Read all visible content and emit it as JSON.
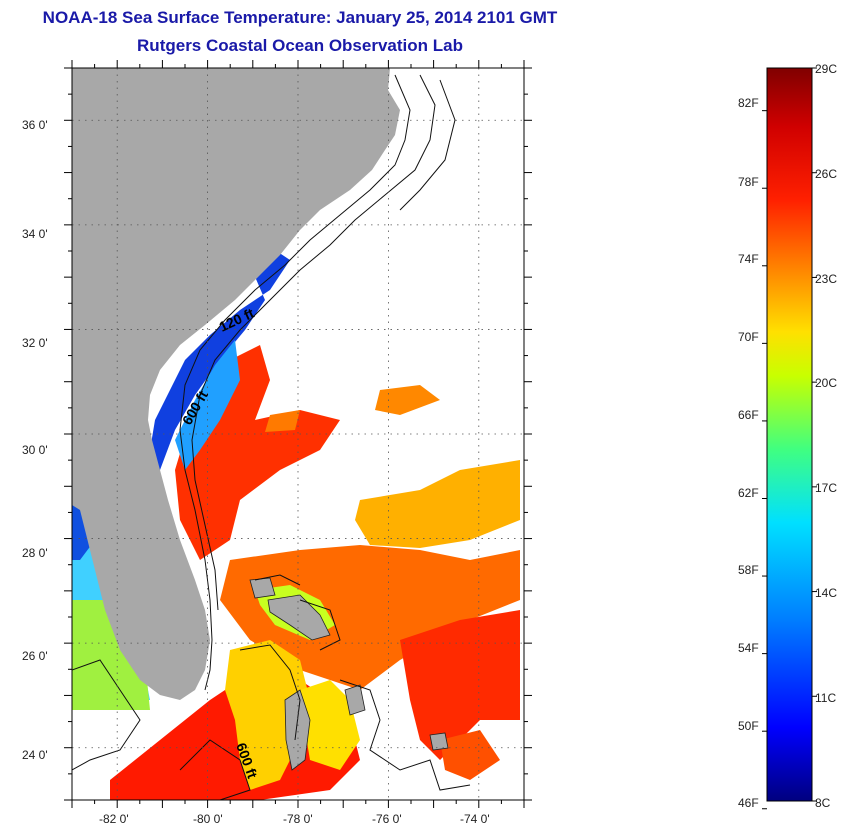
{
  "header": {
    "title": "NOAA-18 Sea Surface Temperature:  January 25, 2014 2101 GMT",
    "subtitle": "Rutgers Coastal Ocean Observation Lab"
  },
  "map": {
    "lat_labels": [
      "36 0'",
      "34 0'",
      "32 0'",
      "30 0'",
      "28 0'",
      "26 0'",
      "24 0'"
    ],
    "lon_labels": [
      "-82 0'",
      "-80 0'",
      "-78 0'",
      "-76 0'",
      "-74 0'"
    ],
    "lat_range": [
      23.0,
      37.0
    ],
    "lon_range": [
      -83.0,
      -73.0
    ],
    "grid": true,
    "contour_labels": [
      "120 ft",
      "600 ft",
      "600 ft"
    ],
    "colors": {
      "land": "#a8a8a8",
      "ocean_nodata": "#ffffff"
    }
  },
  "colorbar": {
    "fahrenheit_labels": [
      "82F",
      "78F",
      "74F",
      "70F",
      "66F",
      "62F",
      "58F",
      "54F",
      "50F",
      "46F"
    ],
    "celsius_labels": [
      "29C",
      "26C",
      "23C",
      "20C",
      "17C",
      "14C",
      "11C",
      "8C"
    ],
    "range_c": [
      8,
      29
    ],
    "colors": [
      "#00007f",
      "#0000ff",
      "#0080ff",
      "#00e0ff",
      "#40ff80",
      "#c8ff00",
      "#ffe000",
      "#ff8000",
      "#ff2000",
      "#d00000",
      "#800000"
    ]
  }
}
